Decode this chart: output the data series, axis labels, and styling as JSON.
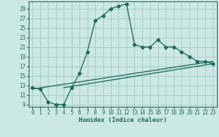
{
  "title": "",
  "xlabel": "Humidex (Indice chaleur)",
  "bg_color": "#cce8e4",
  "grid_color": "#9ec8c0",
  "line_color": "#1a6b5a",
  "xlim": [
    -0.5,
    23.5
  ],
  "ylim": [
    8.5,
    30.5
  ],
  "yticks": [
    9,
    11,
    13,
    15,
    17,
    19,
    21,
    23,
    25,
    27,
    29
  ],
  "xticks": [
    0,
    1,
    2,
    3,
    4,
    5,
    6,
    7,
    8,
    9,
    10,
    11,
    12,
    13,
    14,
    15,
    16,
    17,
    18,
    19,
    20,
    21,
    22,
    23
  ],
  "line1_x": [
    0,
    1,
    2,
    3,
    4,
    5,
    6,
    7,
    8,
    9,
    10,
    11,
    12,
    13,
    14,
    15,
    16,
    17,
    18,
    19,
    20,
    21,
    22,
    23
  ],
  "line1_y": [
    12.5,
    12.2,
    9.5,
    9.0,
    9.0,
    12.5,
    15.5,
    20.0,
    26.5,
    27.5,
    29.0,
    29.5,
    30.0,
    21.5,
    21.0,
    21.0,
    22.5,
    21.0,
    21.0,
    20.0,
    19.0,
    18.0,
    18.0,
    17.5
  ],
  "line2_x": [
    0,
    23
  ],
  "line2_y": [
    12.2,
    18.0
  ],
  "line3_x": [
    4,
    23
  ],
  "line3_y": [
    12.5,
    17.5
  ],
  "marker": "D",
  "markersize": 2.5,
  "linewidth": 1.0,
  "axis_fontsize": 6.5,
  "tick_fontsize": 5.5,
  "xlabel_fontsize": 6.5
}
